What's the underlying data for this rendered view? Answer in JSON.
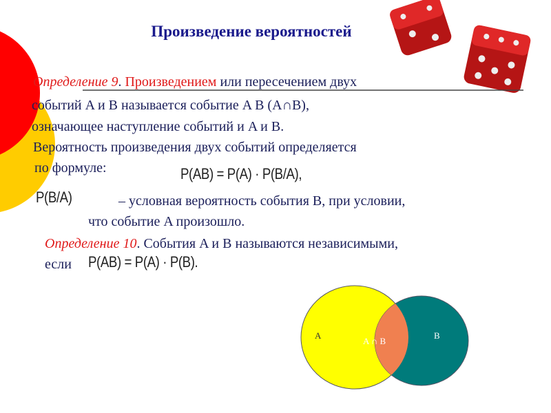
{
  "title": "Произведение вероятностей",
  "def9": {
    "label": "Определение  9",
    "dot": ". ",
    "term": "Произведением",
    "rest1": " или пересечением двух",
    "line2": "событий   A и B называется  событие  A B  (A∩B),",
    "line3": "означающее   наступление событий и  A и B.",
    "line4": "Вероятность произведения двух событий определяется",
    "line5": " по формуле:",
    "formula": "P(AB) = P(A) · P(B/A),"
  },
  "conditional": {
    "symbol": "P(B/A)",
    "text1": "– условная вероятность события B, при условии,",
    "text2": "что событие A произошло."
  },
  "def10": {
    "label": "Определение 10",
    "text": ". События  A и  B называются независимыми,",
    "if": "если",
    "formula": "P(AB) = P(A) · P(B)."
  },
  "venn": {
    "a_label": "A",
    "b_label": "B",
    "intersection_label": "A ∩ B",
    "colors": {
      "a": "#ffff00",
      "b": "#007b7b",
      "ab": "#f08050"
    }
  },
  "decor": {
    "circle_red": "#ff0000",
    "circle_yellow": "#ffcc00",
    "dice_color": "#c01818"
  }
}
